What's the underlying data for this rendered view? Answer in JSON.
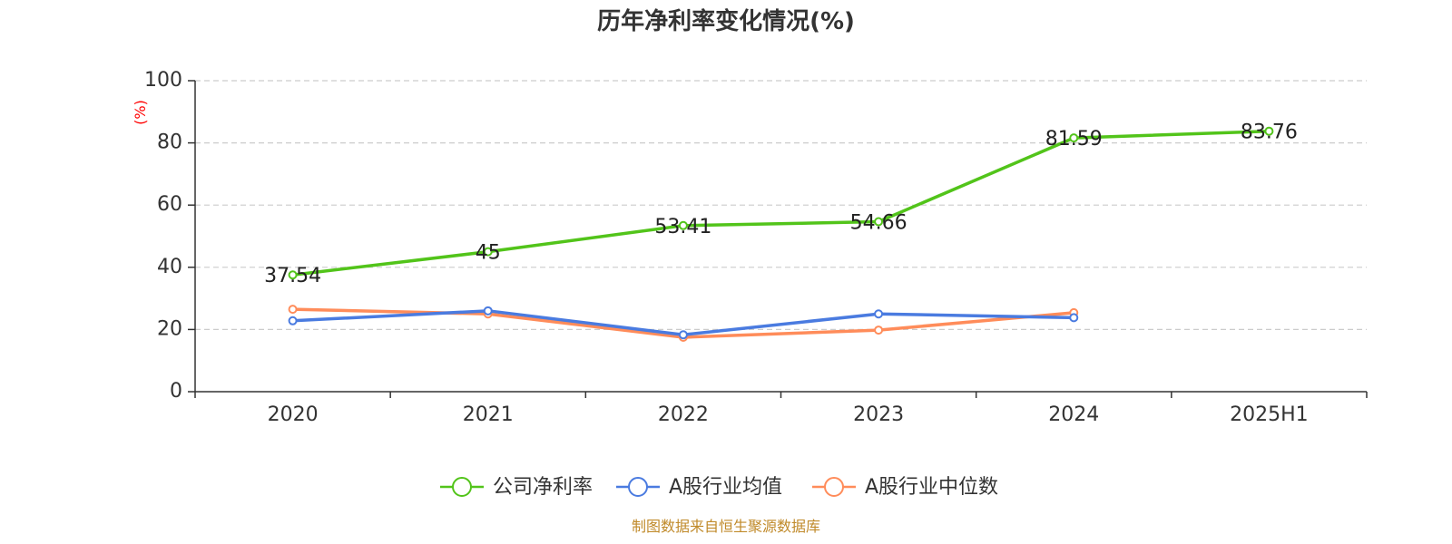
{
  "chart_data": {
    "type": "line",
    "title": "历年净利率变化情况(%)",
    "xlabel": "",
    "ylabel": "(%)",
    "ylim": [
      0,
      100
    ],
    "yticks": [
      0,
      20,
      40,
      60,
      80,
      100
    ],
    "categories": [
      "2020",
      "2021",
      "2022",
      "2023",
      "2024",
      "2025H1"
    ],
    "grid": true,
    "legend_position": "bottom-center",
    "series": [
      {
        "name": "公司净利率",
        "color": "#52c41a",
        "values": [
          37.54,
          45,
          53.41,
          54.66,
          81.59,
          83.76
        ],
        "labels": [
          "37.54",
          "45",
          "53.41",
          "54.66",
          "81.59",
          "83.76"
        ]
      },
      {
        "name": "A股行业均值",
        "color": "#4a7be0",
        "values": [
          22.8,
          26.0,
          18.3,
          25.0,
          23.8,
          null
        ]
      },
      {
        "name": "A股行业中位数",
        "color": "#ff8c5a",
        "values": [
          26.5,
          25.0,
          17.5,
          19.8,
          25.4,
          null
        ]
      }
    ]
  },
  "footer": "制图数据来自恒生聚源数据库"
}
